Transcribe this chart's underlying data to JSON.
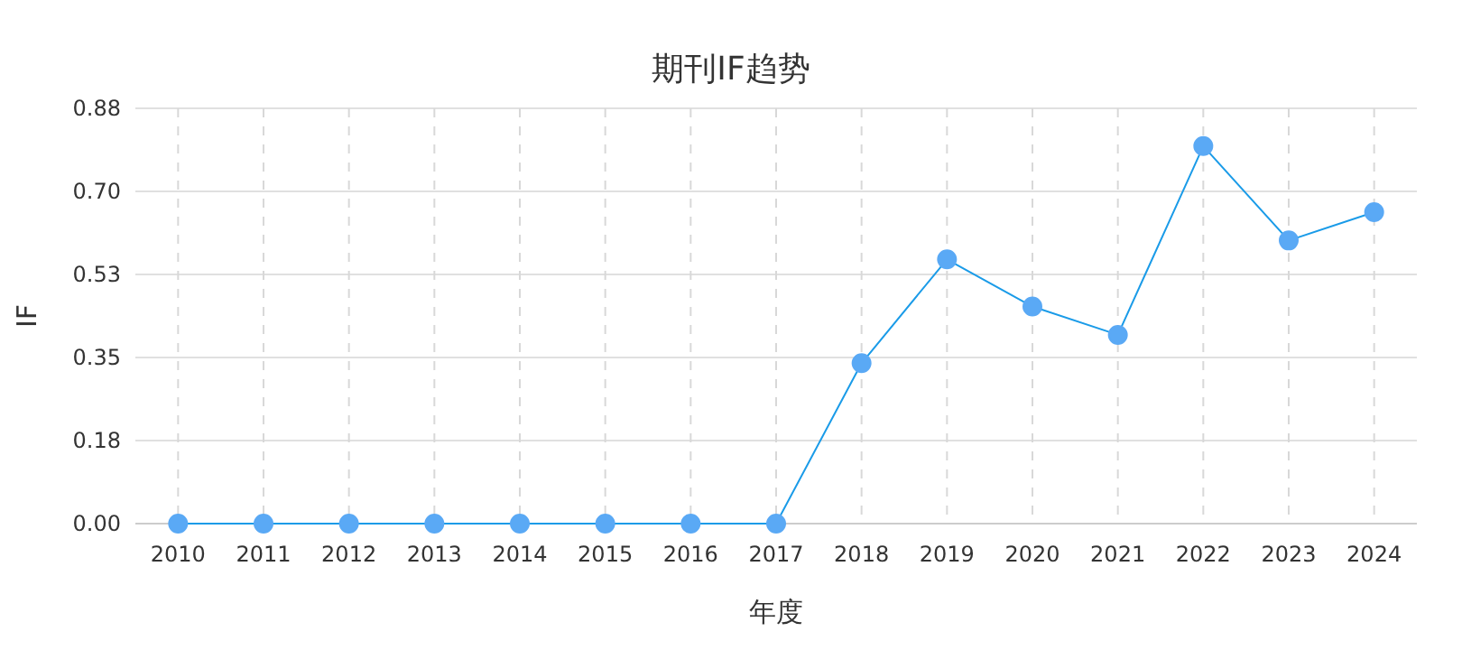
{
  "chart_data": {
    "type": "line",
    "title": "期刊IF趋势",
    "xlabel": "年度",
    "ylabel": "IF",
    "categories": [
      "2010",
      "2011",
      "2012",
      "2013",
      "2014",
      "2015",
      "2016",
      "2017",
      "2018",
      "2019",
      "2020",
      "2021",
      "2022",
      "2023",
      "2024"
    ],
    "values": [
      0,
      0,
      0,
      0,
      0,
      0,
      0,
      0,
      0.34,
      0.56,
      0.46,
      0.4,
      0.8,
      0.6,
      0.66
    ],
    "color": "#1a9be8",
    "ylim": [
      0,
      0.88
    ],
    "yticks": [
      {
        "value": 0,
        "label": "0.00"
      },
      {
        "value": 0.176,
        "label": "0.18"
      },
      {
        "value": 0.352,
        "label": "0.35"
      },
      {
        "value": 0.528,
        "label": "0.53"
      },
      {
        "value": 0.704,
        "label": "0.70"
      },
      {
        "value": 0.88,
        "label": "0.88"
      }
    ],
    "grid": true,
    "marker": "circle",
    "line_style": "solid"
  }
}
